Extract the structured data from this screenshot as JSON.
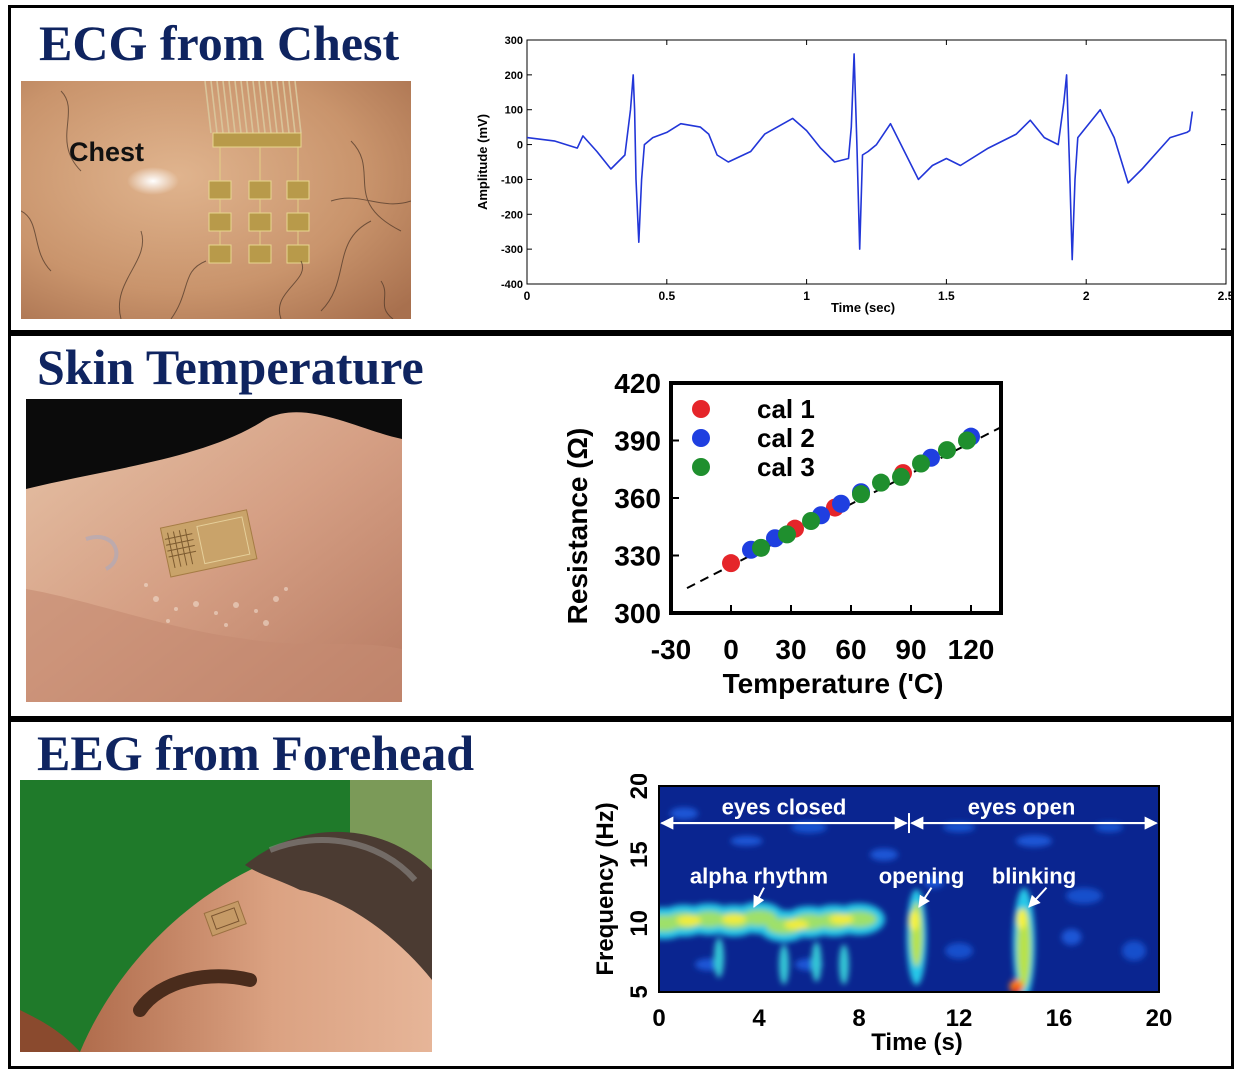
{
  "panels": {
    "ecg": {
      "title": "ECG from Chest",
      "photo_label": "Chest"
    },
    "temp": {
      "title": "Skin Temperature"
    },
    "eeg": {
      "title": "EEG from Forehead"
    }
  },
  "colors": {
    "title": "#0f2460",
    "ecg_line": "#2236d8",
    "cal1": "#e5252a",
    "cal2": "#1f3fe0",
    "cal3": "#1f8f2e"
  },
  "chart_data": [
    {
      "id": "ecg",
      "type": "line",
      "title": "",
      "xlabel": "Time (sec)",
      "ylabel": "Amplitude (mV)",
      "xlim": [
        0,
        2.5
      ],
      "ylim": [
        -400,
        300
      ],
      "xticks": [
        "0",
        "0.5",
        "1",
        "1.5",
        "2",
        "2.5"
      ],
      "yticks": [
        "300",
        "200",
        "100",
        "0",
        "-100",
        "-200",
        "-300",
        "-400"
      ],
      "grid": false,
      "series": [
        {
          "x": [
            0,
            0.1,
            0.18,
            0.2,
            0.25,
            0.3,
            0.35,
            0.37,
            0.38,
            0.385,
            0.39,
            0.4,
            0.41,
            0.42,
            0.45,
            0.5,
            0.55,
            0.62,
            0.65,
            0.68,
            0.72,
            0.8,
            0.85,
            0.95,
            1.0,
            1.05,
            1.1,
            1.15,
            1.16,
            1.17,
            1.18,
            1.19,
            1.2,
            1.22,
            1.25,
            1.3,
            1.4,
            1.45,
            1.5,
            1.55,
            1.65,
            1.75,
            1.8,
            1.85,
            1.9,
            1.92,
            1.93,
            1.94,
            1.95,
            1.96,
            1.97,
            2.0,
            2.05,
            2.1,
            2.15,
            2.2,
            2.3,
            2.36,
            2.37,
            2.38
          ],
          "y": [
            20,
            10,
            -10,
            25,
            -20,
            -70,
            -30,
            100,
            200,
            100,
            -100,
            -280,
            -100,
            0,
            20,
            35,
            60,
            50,
            30,
            -30,
            -50,
            -20,
            30,
            75,
            40,
            -10,
            -50,
            -40,
            50,
            260,
            0,
            -300,
            -30,
            -20,
            0,
            60,
            -100,
            -60,
            -40,
            -60,
            -10,
            30,
            70,
            20,
            0,
            120,
            200,
            -50,
            -330,
            -100,
            20,
            50,
            100,
            20,
            -110,
            -70,
            20,
            35,
            40,
            95
          ]
        }
      ]
    },
    {
      "id": "skin-temperature",
      "type": "scatter",
      "title": "",
      "xlabel": "Temperature ('C)",
      "ylabel": "Resistance (Ω)",
      "xlim": [
        -30,
        135
      ],
      "ylim": [
        300,
        420
      ],
      "xticks": [
        "-30",
        "0",
        "30",
        "60",
        "90",
        "120"
      ],
      "yticks": [
        "420",
        "390",
        "360",
        "330",
        "300"
      ],
      "legend_position": "top-left",
      "fit_line": {
        "style": "dashed",
        "x": [
          -22,
          137
        ],
        "y": [
          313,
          398
        ]
      },
      "series": [
        {
          "name": "cal 1",
          "x": [
            0,
            32,
            52,
            86
          ],
          "y": [
            326,
            344,
            355,
            373
          ]
        },
        {
          "name": "cal 2",
          "x": [
            10,
            22,
            45,
            55,
            65,
            100,
            120
          ],
          "y": [
            333,
            339,
            351,
            357,
            363,
            381,
            392
          ]
        },
        {
          "name": "cal 3",
          "x": [
            15,
            28,
            40,
            65,
            75,
            85,
            95,
            108,
            118
          ],
          "y": [
            334,
            341,
            348,
            362,
            368,
            371,
            378,
            385,
            390
          ]
        }
      ]
    },
    {
      "id": "eeg",
      "type": "heatmap",
      "title": "",
      "xlabel": "Time (s)",
      "ylabel": "Frequency (Hz)",
      "xlim": [
        0,
        20
      ],
      "ylim": [
        5,
        20
      ],
      "xticks": [
        "0",
        "4",
        "8",
        "12",
        "16",
        "20"
      ],
      "yticks": [
        "20",
        "15",
        "10",
        "5"
      ],
      "annotations": [
        {
          "text": "eyes closed",
          "x": 5,
          "y": 18.5
        },
        {
          "text": "eyes open",
          "x": 14.5,
          "y": 18.5
        },
        {
          "text": "alpha rhythm",
          "x": 4,
          "y": 13.5
        },
        {
          "text": "opening",
          "x": 10.5,
          "y": 13.5
        },
        {
          "text": "blinking",
          "x": 15,
          "y": 13.5
        }
      ]
    }
  ]
}
